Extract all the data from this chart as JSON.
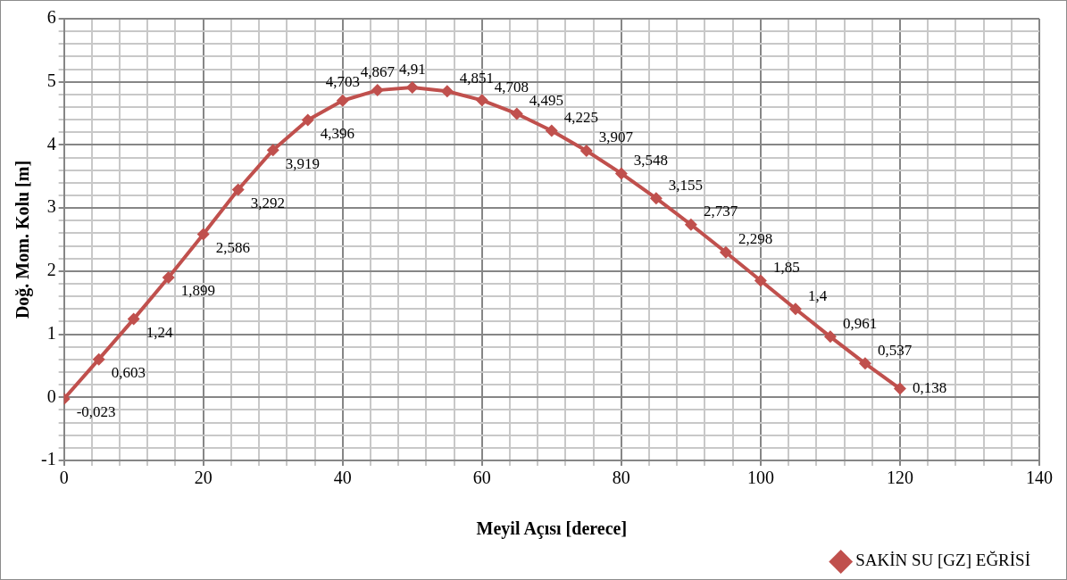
{
  "chart_data": {
    "type": "line",
    "xlabel": "Meyil Açısı [derece]",
    "ylabel": "Doğ. Mom. Kolu [m]",
    "x": [
      0,
      5,
      10,
      15,
      20,
      25,
      30,
      35,
      40,
      45,
      50,
      55,
      60,
      65,
      70,
      75,
      80,
      85,
      90,
      95,
      100,
      105,
      110,
      115,
      120
    ],
    "series": [
      {
        "name": "SAKİN SU [GZ] EĞRİSİ",
        "color": "#c0504d",
        "values": [
          -0.023,
          0.603,
          1.24,
          1.899,
          2.586,
          3.292,
          3.919,
          4.396,
          4.703,
          4.867,
          4.91,
          4.851,
          4.708,
          4.495,
          4.225,
          3.907,
          3.548,
          3.155,
          2.737,
          2.298,
          1.85,
          1.4,
          0.961,
          0.537,
          0.138
        ],
        "value_labels": [
          "-0,023",
          "0,603",
          "1,24",
          "1,899",
          "2,586",
          "3,292",
          "3,919",
          "4,396",
          "4,703",
          "4,867",
          "4,91",
          "4,851",
          "4,708",
          "4,495",
          "4,225",
          "3,907",
          "3,548",
          "3,155",
          "2,737",
          "2,298",
          "1,85",
          "1,4",
          "0,961",
          "0,537",
          "0,138"
        ]
      }
    ],
    "xlim": [
      0,
      140
    ],
    "xticks": [
      0,
      {
        "value": 4,
        "label": null
      },
      {
        "value": 8,
        "label": null
      },
      {
        "value": 12,
        "label": null
      },
      {
        "value": 16,
        "label": null
      },
      20,
      {
        "value": 24,
        "label": null
      },
      {
        "value": 28,
        "label": null
      },
      {
        "value": 32,
        "label": null
      },
      {
        "value": 36,
        "label": null
      },
      40,
      {
        "value": 44,
        "label": null
      },
      {
        "value": 48,
        "label": null
      },
      {
        "value": 52,
        "label": null
      },
      {
        "value": 56,
        "label": null
      },
      60,
      {
        "value": 64,
        "label": null
      },
      {
        "value": 68,
        "label": null
      },
      {
        "value": 72,
        "label": null
      },
      {
        "value": 76,
        "label": null
      },
      80,
      {
        "value": 84,
        "label": null
      },
      {
        "value": 88,
        "label": null
      },
      {
        "value": 92,
        "label": null
      },
      {
        "value": 96,
        "label": null
      },
      100,
      {
        "value": 104,
        "label": null
      },
      {
        "value": 108,
        "label": null
      },
      {
        "value": 112,
        "label": null
      },
      {
        "value": 116,
        "label": null
      },
      120,
      {
        "value": 124,
        "label": null
      },
      {
        "value": 128,
        "label": null
      },
      {
        "value": 132,
        "label": null
      },
      {
        "value": 136,
        "label": null
      },
      140
    ],
    "ylim": [
      -1,
      6
    ],
    "yticks": [
      -1,
      {
        "value": -0.8,
        "label": null
      },
      {
        "value": -0.6,
        "label": null
      },
      {
        "value": -0.4,
        "label": null
      },
      {
        "value": -0.2,
        "label": null
      },
      0,
      {
        "value": 0.2,
        "label": null
      },
      {
        "value": 0.4,
        "label": null
      },
      {
        "value": 0.6,
        "label": null
      },
      {
        "value": 0.8,
        "label": null
      },
      1,
      {
        "value": 1.2,
        "label": null
      },
      {
        "value": 1.4,
        "label": null
      },
      {
        "value": 1.6,
        "label": null
      },
      {
        "value": 1.8,
        "label": null
      },
      2,
      {
        "value": 2.2,
        "label": null
      },
      {
        "value": 2.4,
        "label": null
      },
      {
        "value": 2.6,
        "label": null
      },
      {
        "value": 2.8,
        "label": null
      },
      3,
      {
        "value": 3.2,
        "label": null
      },
      {
        "value": 3.4,
        "label": null
      },
      {
        "value": 3.6,
        "label": null
      },
      {
        "value": 3.8,
        "label": null
      },
      4,
      {
        "value": 4.2,
        "label": null
      },
      {
        "value": 4.4,
        "label": null
      },
      {
        "value": 4.6,
        "label": null
      },
      {
        "value": 4.8,
        "label": null
      },
      5,
      {
        "value": 5.2,
        "label": null
      },
      {
        "value": 5.4,
        "label": null
      },
      {
        "value": 5.6,
        "label": null
      },
      {
        "value": 5.8,
        "label": null
      },
      6
    ],
    "grid": true,
    "legend": "bottom right",
    "marker": "diamond",
    "line_style": "solid"
  }
}
